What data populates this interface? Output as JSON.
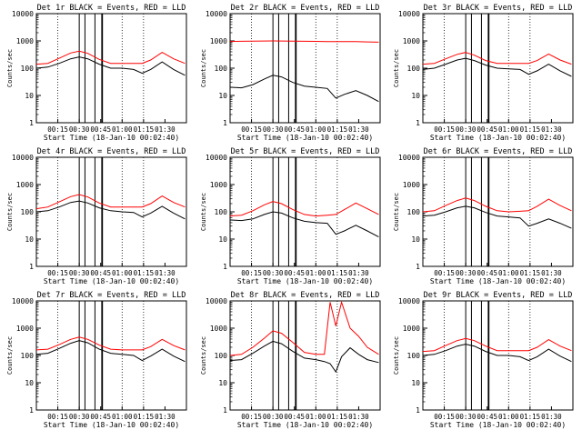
{
  "x_axis_label": "Start Time (18-Jan-10 00:02:40)",
  "y_axis_label": "Counts/sec",
  "x_ticks": [
    "00:15",
    "00:30",
    "00:45",
    "01:00",
    "01:15",
    "01:30"
  ],
  "y_ticks": [
    "1",
    "10",
    "100",
    "1000",
    "10000"
  ],
  "line_colors": {
    "events": "#000000",
    "lld": "#ff0000"
  },
  "chart_data": [
    {
      "type": "line",
      "title": "Det 1r BLACK = Events, RED = LLD",
      "xlabel": "Start Time (18-Jan-10 00:02:40)",
      "ylabel": "Counts/sec",
      "yscale": "log",
      "ylim": [
        1,
        10000
      ],
      "xlim_minutes": [
        0,
        105
      ],
      "x_tick_labels": [
        "00:15",
        "00:30",
        "00:45",
        "01:00",
        "01:15",
        "01:30"
      ],
      "x_minutes": [
        0,
        8,
        16,
        24,
        30,
        36,
        44,
        52,
        60,
        68,
        74,
        80,
        88,
        96,
        104
      ],
      "series": [
        {
          "name": "Events",
          "color": "#000000",
          "values": [
            100,
            110,
            150,
            220,
            260,
            220,
            140,
            100,
            100,
            90,
            65,
            90,
            170,
            90,
            55
          ]
        },
        {
          "name": "LLD",
          "color": "#ff0000",
          "values": [
            140,
            150,
            230,
            360,
            420,
            350,
            210,
            150,
            150,
            150,
            150,
            200,
            380,
            220,
            150
          ]
        }
      ]
    },
    {
      "type": "line",
      "title": "Det 2r BLACK = Events, RED = LLD",
      "xlabel": "Start Time (18-Jan-10 00:02:40)",
      "ylabel": "Counts/sec",
      "yscale": "log",
      "ylim": [
        1,
        10000
      ],
      "xlim_minutes": [
        0,
        105
      ],
      "x_tick_labels": [
        "00:15",
        "00:30",
        "00:45",
        "01:00",
        "01:15",
        "01:30"
      ],
      "x_minutes": [
        0,
        8,
        16,
        24,
        30,
        36,
        44,
        52,
        60,
        68,
        74,
        80,
        88,
        96,
        104
      ],
      "series": [
        {
          "name": "Events",
          "color": "#000000",
          "values": [
            20,
            19,
            25,
            40,
            55,
            48,
            30,
            22,
            20,
            18,
            8,
            11,
            15,
            10,
            6
          ]
        },
        {
          "name": "LLD",
          "color": "#ff0000",
          "values": [
            950,
            970,
            980,
            990,
            1000,
            990,
            980,
            970,
            960,
            950,
            940,
            940,
            950,
            920,
            900
          ]
        }
      ]
    },
    {
      "type": "line",
      "title": "Det 3r BLACK = Events, RED = LLD",
      "xlabel": "Start Time (18-Jan-10 00:02:40)",
      "ylabel": "Counts/sec",
      "yscale": "log",
      "ylim": [
        1,
        10000
      ],
      "xlim_minutes": [
        0,
        105
      ],
      "x_tick_labels": [
        "00:15",
        "00:30",
        "00:45",
        "01:00",
        "01:15",
        "01:30"
      ],
      "x_minutes": [
        0,
        8,
        16,
        24,
        30,
        36,
        44,
        52,
        60,
        68,
        74,
        80,
        88,
        96,
        104
      ],
      "series": [
        {
          "name": "Events",
          "color": "#000000",
          "values": [
            90,
            100,
            140,
            200,
            230,
            190,
            130,
            100,
            95,
            90,
            60,
            80,
            140,
            80,
            50
          ]
        },
        {
          "name": "LLD",
          "color": "#ff0000",
          "values": [
            140,
            150,
            220,
            320,
            380,
            300,
            190,
            150,
            150,
            150,
            150,
            190,
            330,
            200,
            140
          ]
        }
      ]
    },
    {
      "type": "line",
      "title": "Det 4r BLACK = Events, RED = LLD",
      "xlabel": "Start Time (18-Jan-10 00:02:40)",
      "ylabel": "Counts/sec",
      "yscale": "log",
      "ylim": [
        1,
        10000
      ],
      "xlim_minutes": [
        0,
        105
      ],
      "x_tick_labels": [
        "00:15",
        "00:30",
        "00:45",
        "01:00",
        "01:15",
        "01:30"
      ],
      "x_minutes": [
        0,
        8,
        16,
        24,
        30,
        36,
        44,
        52,
        60,
        68,
        74,
        80,
        88,
        96,
        104
      ],
      "series": [
        {
          "name": "Events",
          "color": "#000000",
          "values": [
            100,
            110,
            150,
            220,
            250,
            210,
            140,
            110,
            100,
            95,
            65,
            90,
            160,
            90,
            55
          ]
        },
        {
          "name": "LLD",
          "color": "#ff0000",
          "values": [
            130,
            150,
            230,
            360,
            430,
            350,
            210,
            150,
            150,
            150,
            150,
            200,
            380,
            220,
            150
          ]
        }
      ]
    },
    {
      "type": "line",
      "title": "Det 5r BLACK = Events, RED = LLD",
      "xlabel": "Start Time (18-Jan-10 00:02:40)",
      "ylabel": "Counts/sec",
      "yscale": "log",
      "ylim": [
        1,
        10000
      ],
      "xlim_minutes": [
        0,
        105
      ],
      "x_tick_labels": [
        "00:15",
        "00:30",
        "00:45",
        "01:00",
        "01:15",
        "01:30"
      ],
      "x_minutes": [
        0,
        8,
        16,
        24,
        30,
        36,
        44,
        52,
        60,
        68,
        74,
        80,
        88,
        96,
        104
      ],
      "series": [
        {
          "name": "Events",
          "color": "#000000",
          "values": [
            50,
            48,
            55,
            80,
            100,
            90,
            60,
            45,
            40,
            38,
            15,
            20,
            32,
            20,
            12
          ]
        },
        {
          "name": "LLD",
          "color": "#ff0000",
          "values": [
            70,
            75,
            110,
            180,
            240,
            200,
            120,
            80,
            70,
            75,
            80,
            120,
            210,
            130,
            80
          ]
        }
      ]
    },
    {
      "type": "line",
      "title": "Det 6r BLACK = Events, RED = LLD",
      "xlabel": "Start Time (18-Jan-10 00:02:40)",
      "ylabel": "Counts/sec",
      "yscale": "log",
      "ylim": [
        1,
        10000
      ],
      "xlim_minutes": [
        0,
        105
      ],
      "x_tick_labels": [
        "00:15",
        "00:30",
        "00:45",
        "01:00",
        "01:15",
        "01:30"
      ],
      "x_minutes": [
        0,
        8,
        16,
        24,
        30,
        36,
        44,
        52,
        60,
        68,
        74,
        80,
        88,
        96,
        104
      ],
      "series": [
        {
          "name": "Events",
          "color": "#000000",
          "values": [
            70,
            75,
            100,
            140,
            160,
            140,
            95,
            70,
            65,
            60,
            30,
            38,
            55,
            38,
            25
          ]
        },
        {
          "name": "LLD",
          "color": "#ff0000",
          "values": [
            100,
            110,
            170,
            260,
            320,
            260,
            160,
            110,
            100,
            105,
            110,
            160,
            290,
            170,
            110
          ]
        }
      ]
    },
    {
      "type": "line",
      "title": "Det 7r BLACK = Events, RED = LLD",
      "xlabel": "Start Time (18-Jan-10 00:02:40)",
      "ylabel": "Counts/sec",
      "yscale": "log",
      "ylim": [
        1,
        10000
      ],
      "xlim_minutes": [
        0,
        105
      ],
      "x_tick_labels": [
        "00:15",
        "00:30",
        "00:45",
        "01:00",
        "01:15",
        "01:30"
      ],
      "x_minutes": [
        0,
        8,
        16,
        24,
        30,
        36,
        44,
        52,
        60,
        68,
        74,
        80,
        88,
        96,
        104
      ],
      "series": [
        {
          "name": "Events",
          "color": "#000000",
          "values": [
            110,
            120,
            180,
            280,
            350,
            290,
            170,
            120,
            110,
            100,
            65,
            95,
            170,
            95,
            60
          ]
        },
        {
          "name": "LLD",
          "color": "#ff0000",
          "values": [
            160,
            170,
            250,
            390,
            470,
            390,
            240,
            170,
            160,
            160,
            160,
            210,
            390,
            230,
            160
          ]
        }
      ]
    },
    {
      "type": "line",
      "title": "Det 8r BLACK = Events, RED = LLD",
      "xlabel": "Start Time (18-Jan-10 00:02:40)",
      "ylabel": "Counts/sec",
      "yscale": "log",
      "ylim": [
        1,
        10000
      ],
      "xlim_minutes": [
        0,
        105
      ],
      "x_tick_labels": [
        "00:15",
        "00:30",
        "00:45",
        "01:00",
        "01:15",
        "01:30"
      ],
      "x_minutes": [
        0,
        8,
        16,
        24,
        30,
        36,
        44,
        52,
        60,
        66,
        70,
        74,
        78,
        84,
        90,
        96,
        104
      ],
      "series": [
        {
          "name": "Events",
          "color": "#000000",
          "values": [
            65,
            70,
            120,
            220,
            330,
            270,
            140,
            80,
            70,
            60,
            50,
            25,
            90,
            190,
            110,
            70,
            55
          ]
        },
        {
          "name": "LLD",
          "color": "#ff0000",
          "values": [
            100,
            110,
            200,
            430,
            800,
            650,
            300,
            130,
            110,
            110,
            9000,
            1200,
            9000,
            1000,
            500,
            200,
            110
          ]
        }
      ]
    },
    {
      "type": "line",
      "title": "Det 9r BLACK = Events, RED = LLD",
      "xlabel": "Start Time (18-Jan-10 00:02:40)",
      "ylabel": "Counts/sec",
      "yscale": "log",
      "ylim": [
        1,
        10000
      ],
      "xlim_minutes": [
        0,
        105
      ],
      "x_tick_labels": [
        "00:15",
        "00:30",
        "00:45",
        "01:00",
        "01:15",
        "01:30"
      ],
      "x_minutes": [
        0,
        8,
        16,
        24,
        30,
        36,
        44,
        52,
        60,
        68,
        74,
        80,
        88,
        96,
        104
      ],
      "series": [
        {
          "name": "Events",
          "color": "#000000",
          "values": [
            100,
            110,
            150,
            220,
            260,
            220,
            140,
            100,
            100,
            90,
            65,
            90,
            170,
            95,
            60
          ]
        },
        {
          "name": "LLD",
          "color": "#ff0000",
          "values": [
            140,
            150,
            230,
            350,
            420,
            350,
            220,
            150,
            150,
            150,
            150,
            200,
            380,
            220,
            150
          ]
        }
      ]
    }
  ]
}
